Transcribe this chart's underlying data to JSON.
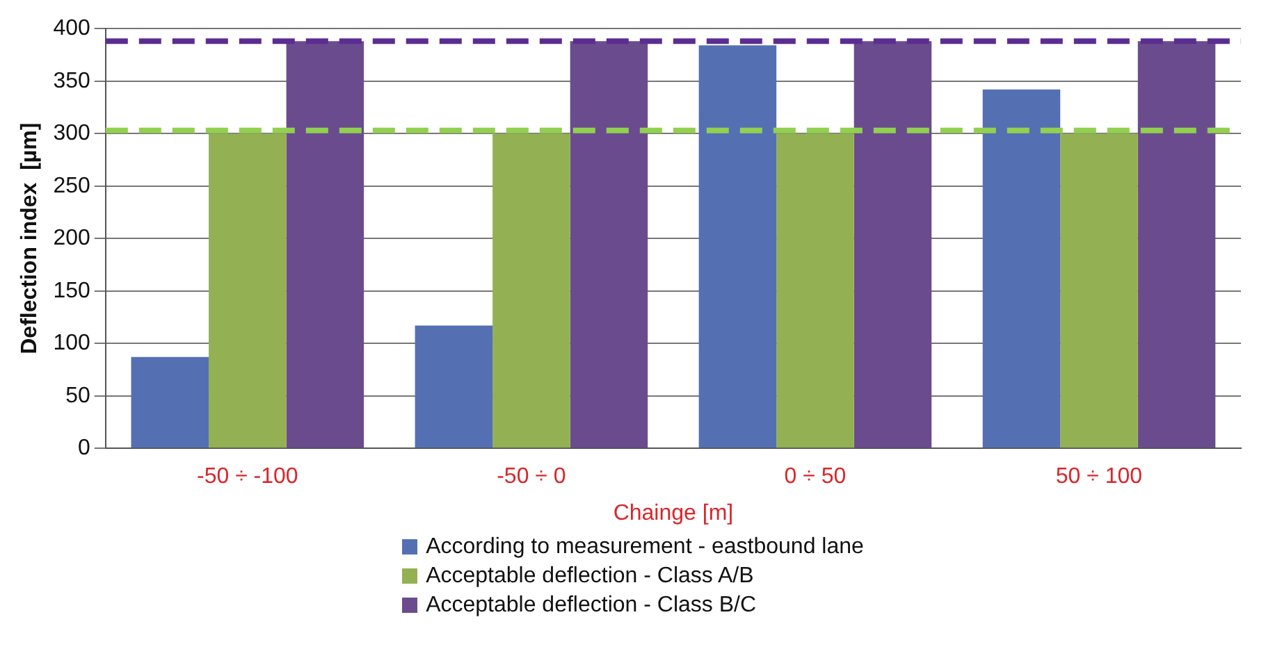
{
  "chart_data": {
    "type": "bar",
    "xlabel": "Chainge [m]",
    "ylabel": "Deflection index  [µm]",
    "categories": [
      "-50 ÷ -100",
      "-50 ÷ 0",
      "0 ÷ 50",
      "50 ÷ 100"
    ],
    "series": [
      {
        "name": "According to measurement - eastbound lane",
        "color": "#5470b2",
        "values": [
          87,
          117,
          384,
          342
        ]
      },
      {
        "name": "Acceptable deflection - Class A/B",
        "color": "#93b152",
        "values": [
          300,
          300,
          300,
          300
        ]
      },
      {
        "name": "Acceptable deflection - Class B/C",
        "color": "#6a4c8e",
        "values": [
          388,
          388,
          388,
          388
        ]
      }
    ],
    "ylim": [
      0,
      400
    ],
    "yticks": [
      0,
      50,
      100,
      150,
      200,
      250,
      300,
      350,
      400
    ],
    "grid": "y",
    "legend": "bottom",
    "ref_lines": [
      {
        "axis": "y",
        "value": 388,
        "color": "#5b2d92",
        "line_style": "dashed"
      },
      {
        "axis": "y",
        "value": 303,
        "color": "#92d050",
        "line_style": "dashed"
      }
    ]
  }
}
